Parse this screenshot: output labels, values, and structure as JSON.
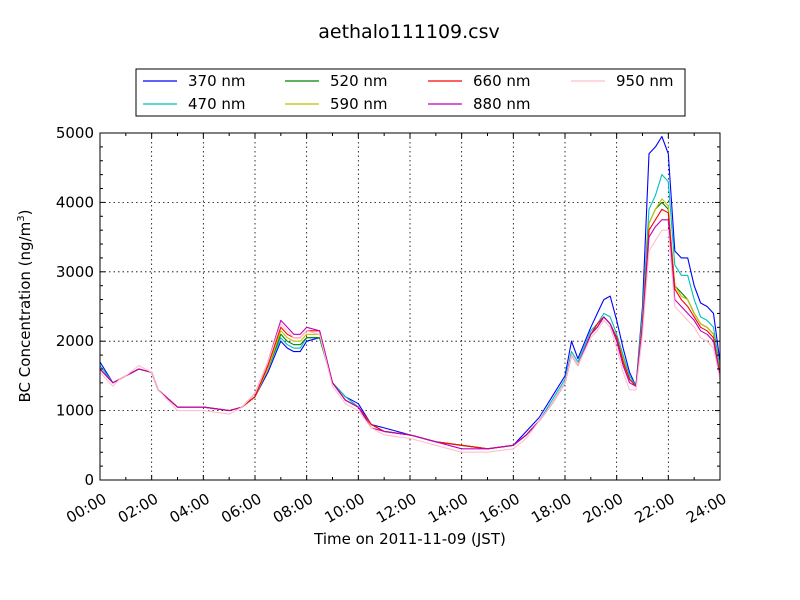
{
  "chart_data": {
    "type": "line",
    "title": "aethalo111109.csv",
    "xlabel": "Time on 2011-11-09 (JST)",
    "ylabel": "BC Concentration (ng/m",
    "ylabel_sup": "3",
    "ylabel_tail": ")",
    "xlim": [
      0,
      24
    ],
    "ylim": [
      0,
      5000
    ],
    "x_ticks": [
      0,
      2,
      4,
      6,
      8,
      10,
      12,
      14,
      16,
      18,
      20,
      22,
      24
    ],
    "x_tick_labels": [
      "00:00",
      "02:00",
      "04:00",
      "06:00",
      "08:00",
      "10:00",
      "12:00",
      "14:00",
      "16:00",
      "18:00",
      "20:00",
      "22:00",
      "24:00"
    ],
    "y_ticks": [
      0,
      1000,
      2000,
      3000,
      4000,
      5000
    ],
    "y_tick_labels": [
      "0",
      "1000",
      "2000",
      "3000",
      "4000",
      "5000"
    ],
    "grid": true,
    "legend_placement": "top-center, above plot",
    "x": [
      0,
      0.5,
      0.75,
      1,
      1.5,
      2,
      2.25,
      3,
      4,
      5,
      5.5,
      6,
      6.5,
      7,
      7.25,
      7.5,
      7.75,
      8,
      8.5,
      9,
      9.5,
      10,
      10.5,
      11,
      12,
      13,
      14,
      15,
      16,
      16.5,
      17,
      17.5,
      18,
      18.25,
      18.5,
      19,
      19.25,
      19.5,
      19.75,
      20,
      20.25,
      20.5,
      20.75,
      21,
      21.25,
      21.5,
      21.75,
      22,
      22.25,
      22.5,
      22.75,
      23,
      23.25,
      23.5,
      23.75,
      24
    ],
    "series": [
      {
        "name": "370 nm",
        "color": "#0000ff",
        "values": [
          1700,
          1400,
          1450,
          1500,
          1600,
          1550,
          1300,
          1050,
          1050,
          1000,
          1050,
          1200,
          1550,
          2000,
          1900,
          1850,
          1850,
          2000,
          2050,
          1400,
          1200,
          1100,
          800,
          750,
          650,
          550,
          500,
          450,
          500,
          700,
          900,
          1200,
          1500,
          2000,
          1750,
          2200,
          2400,
          2600,
          2650,
          2300,
          1900,
          1550,
          1350,
          2500,
          4700,
          4800,
          4950,
          4700,
          3300,
          3200,
          3200,
          2800,
          2550,
          2500,
          2400,
          1700
        ]
      },
      {
        "name": "470 nm",
        "color": "#00bfbf",
        "values": [
          1650,
          1400,
          1450,
          1500,
          1600,
          1550,
          1300,
          1050,
          1050,
          1000,
          1050,
          1200,
          1600,
          2050,
          1950,
          1900,
          1900,
          2050,
          2050,
          1400,
          1200,
          1050,
          800,
          700,
          650,
          550,
          500,
          450,
          500,
          650,
          850,
          1150,
          1450,
          1850,
          1700,
          2150,
          2250,
          2400,
          2350,
          2100,
          1800,
          1500,
          1350,
          2400,
          3900,
          4100,
          4400,
          4300,
          3100,
          2950,
          2950,
          2600,
          2350,
          2300,
          2200,
          1600
        ]
      },
      {
        "name": "520 nm",
        "color": "#008000",
        "values": [
          1600,
          1400,
          1450,
          1500,
          1600,
          1550,
          1300,
          1050,
          1050,
          1000,
          1050,
          1200,
          1600,
          2100,
          2000,
          1950,
          1950,
          2050,
          2050,
          1400,
          1150,
          1050,
          800,
          700,
          650,
          550,
          500,
          450,
          500,
          650,
          850,
          1100,
          1400,
          1800,
          1650,
          2100,
          2200,
          2350,
          2250,
          2050,
          1750,
          1450,
          1350,
          2300,
          3700,
          3900,
          4000,
          3900,
          2800,
          2700,
          2600,
          2400,
          2250,
          2200,
          2100,
          1550
        ]
      },
      {
        "name": "590 nm",
        "color": "#bfbf00",
        "values": [
          1600,
          1400,
          1450,
          1500,
          1600,
          1550,
          1300,
          1050,
          1050,
          1000,
          1050,
          1200,
          1600,
          2150,
          2050,
          2000,
          2000,
          2100,
          2100,
          1400,
          1150,
          1050,
          800,
          700,
          650,
          550,
          500,
          450,
          500,
          650,
          850,
          1100,
          1400,
          1800,
          1650,
          2100,
          2250,
          2350,
          2250,
          2050,
          1750,
          1450,
          1350,
          2300,
          3700,
          3900,
          4050,
          3950,
          2800,
          2650,
          2600,
          2400,
          2250,
          2200,
          2100,
          1550
        ]
      },
      {
        "name": "660 nm",
        "color": "#ff0000",
        "values": [
          1600,
          1400,
          1450,
          1500,
          1600,
          1550,
          1300,
          1050,
          1050,
          1000,
          1050,
          1200,
          1650,
          2200,
          2100,
          2050,
          2050,
          2150,
          2150,
          1400,
          1150,
          1050,
          800,
          700,
          650,
          550,
          500,
          450,
          500,
          650,
          850,
          1100,
          1400,
          1800,
          1650,
          2100,
          2250,
          2350,
          2250,
          2050,
          1700,
          1450,
          1350,
          2250,
          3600,
          3750,
          3900,
          3850,
          2750,
          2600,
          2500,
          2350,
          2200,
          2150,
          2050,
          1500
        ]
      },
      {
        "name": "880 nm",
        "color": "#bf00bf",
        "values": [
          1600,
          1400,
          1450,
          1500,
          1600,
          1550,
          1300,
          1050,
          1050,
          1000,
          1050,
          1250,
          1700,
          2300,
          2200,
          2100,
          2100,
          2200,
          2150,
          1400,
          1150,
          1050,
          750,
          700,
          650,
          550,
          450,
          450,
          500,
          650,
          850,
          1100,
          1400,
          1800,
          1650,
          2100,
          2200,
          2350,
          2250,
          2000,
          1650,
          1400,
          1350,
          2200,
          3500,
          3650,
          3750,
          3750,
          2600,
          2500,
          2400,
          2300,
          2150,
          2100,
          2000,
          1500
        ]
      },
      {
        "name": "950 nm",
        "color": "#ffc0cb",
        "values": [
          1550,
          1350,
          1450,
          1500,
          1650,
          1550,
          1300,
          1000,
          1000,
          950,
          1050,
          1250,
          1700,
          2250,
          2150,
          2050,
          2050,
          2150,
          2100,
          1350,
          1100,
          1000,
          750,
          650,
          600,
          500,
          400,
          400,
          450,
          600,
          850,
          1100,
          1400,
          1800,
          1650,
          2050,
          2150,
          2300,
          2200,
          1900,
          1550,
          1300,
          1300,
          2100,
          3300,
          3450,
          3600,
          3600,
          2500,
          2400,
          2300,
          2200,
          2050,
          2000,
          1900,
          1450
        ]
      }
    ]
  }
}
